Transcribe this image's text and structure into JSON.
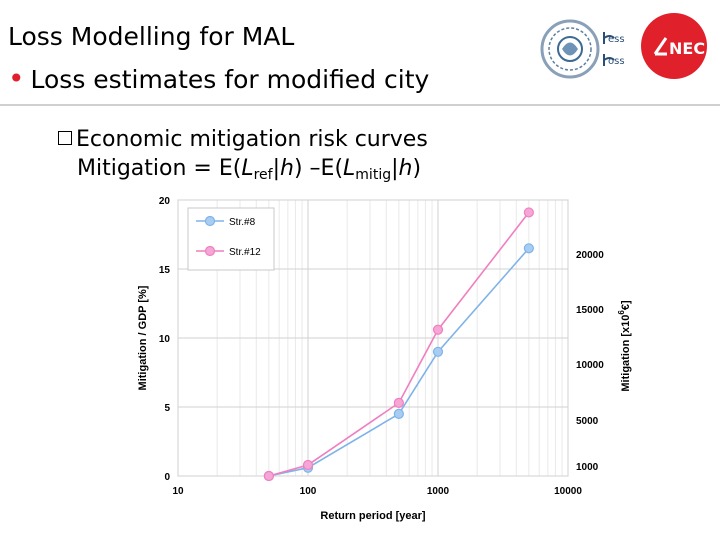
{
  "slide": {
    "title": "Loss Modelling for MAL",
    "bullet": "Loss estimates for modified city",
    "sub_bullet": "Economic mitigation risk curves",
    "formula": {
      "lhs": "Mitigation = E(",
      "l1": "L",
      "l1_sub": "ref",
      "mid1": "|",
      "h1": "h",
      "mid2": ") –E(",
      "l2": "L",
      "l2_sub": "mitig",
      "mid3": "|",
      "h2": "h",
      "end": ")"
    },
    "logos": {
      "seal_lettering": "less loss",
      "brand": "LNEC",
      "brand_color": "#e0202a"
    }
  },
  "chart_data": {
    "type": "line",
    "x_scale": "log",
    "xlim": [
      10,
      10000
    ],
    "ylim_left": [
      0,
      20
    ],
    "left_ticks": [
      "0",
      "5",
      "10",
      "15",
      "20"
    ],
    "x_ticks": [
      "10",
      "100",
      "1000",
      "10000"
    ],
    "right_ticks": [
      "1000",
      "5000",
      "10000",
      "15000",
      "20000"
    ],
    "xlabel": "Return period [year]",
    "ylabel_left": "Mitigation / GDP [%]",
    "ylabel_right_main": "Mitigation [x10",
    "ylabel_right_exp": "6",
    "ylabel_right_unit": "€]",
    "grid": true,
    "legend_position": "top-left",
    "series": [
      {
        "name": "Str.#8",
        "color": "#7fb3e8",
        "marker": "#a8cdf2",
        "x": [
          50,
          100,
          500,
          1000,
          5000
        ],
        "y": [
          0,
          0.6,
          4.5,
          9.0,
          16.5
        ]
      },
      {
        "name": "Str.#12",
        "color": "#f07fc0",
        "marker": "#f5a6d6",
        "x": [
          50,
          100,
          500,
          1000,
          5000
        ],
        "y": [
          0,
          0.8,
          5.3,
          10.6,
          19.1
        ]
      }
    ]
  }
}
